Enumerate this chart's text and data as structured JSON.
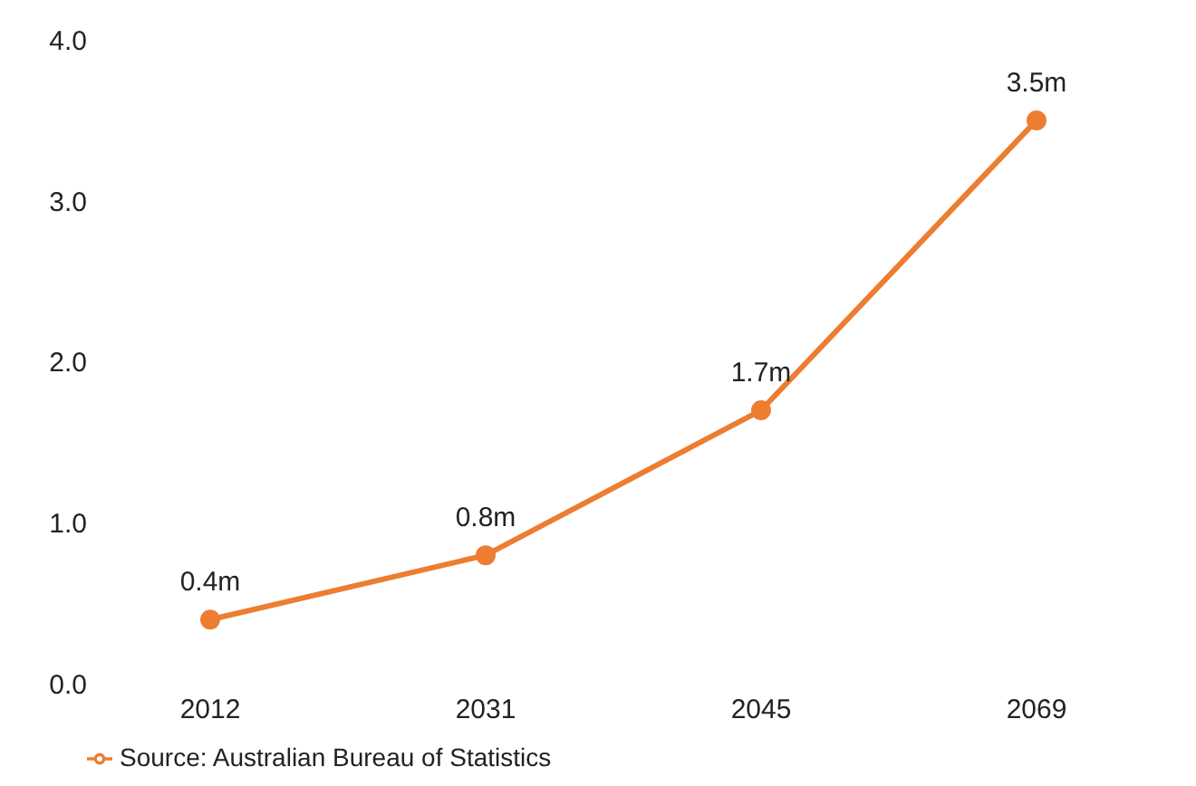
{
  "chart_data": {
    "type": "line",
    "categories": [
      "2012",
      "2031",
      "2045",
      "2069"
    ],
    "series": [
      {
        "name": "Source: Australian Bureau of Statistics",
        "color": "#ed7d31",
        "values": [
          0.4,
          0.8,
          1.7,
          3.5
        ],
        "value_labels": [
          "0.4m",
          "0.8m",
          "1.7m",
          "3.5m"
        ]
      }
    ],
    "ylim": [
      0,
      4
    ],
    "yticks": [
      {
        "value": 0,
        "label": "0.0"
      },
      {
        "value": 1,
        "label": "1.0"
      },
      {
        "value": 2,
        "label": "2.0"
      },
      {
        "value": 3,
        "label": "3.0"
      },
      {
        "value": 4,
        "label": "4.0"
      }
    ],
    "grid": false,
    "legend": "bottom left",
    "marker": "circle",
    "line_style": "solid"
  }
}
